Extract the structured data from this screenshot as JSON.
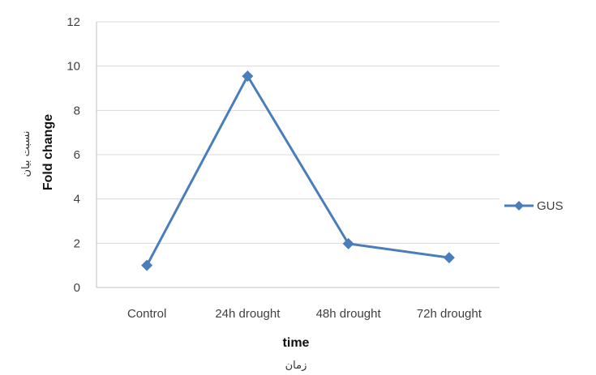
{
  "chart_data": {
    "type": "line",
    "categories": [
      "Control",
      "24h drought",
      "48h drought",
      "72h drought"
    ],
    "series": [
      {
        "name": "GUS",
        "values": [
          1.0,
          9.55,
          1.98,
          1.35
        ],
        "color": "#4a7ebb",
        "marker": "diamond"
      }
    ],
    "yticks": [
      "0",
      "2",
      "4",
      "6",
      "8",
      "10",
      "12"
    ],
    "ylim": [
      0,
      12
    ],
    "ylabel": "Fold change",
    "ylabel_sub": "نسبت بیان",
    "xlabel": "time",
    "xlabel_sub": "زمان",
    "grid": true,
    "legend_position": "right"
  }
}
